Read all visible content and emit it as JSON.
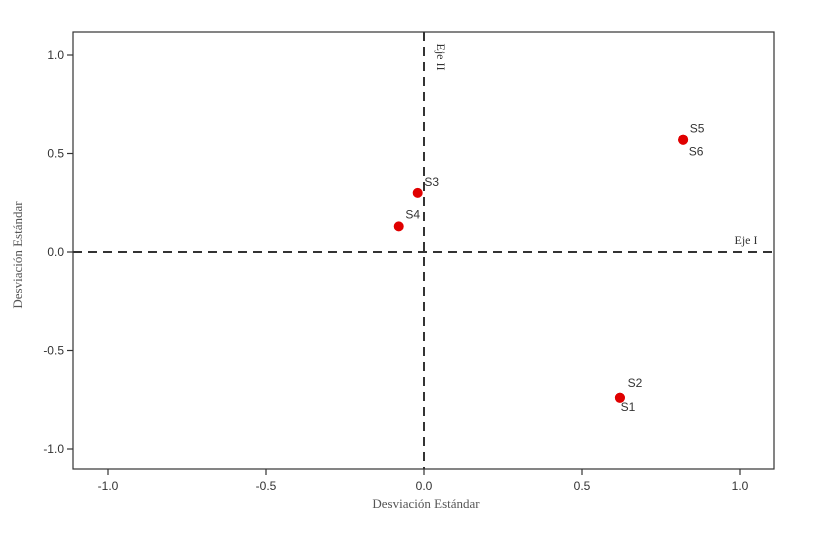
{
  "chart_data": {
    "type": "scatter",
    "title": "",
    "xlabel": "Desviación Estándar",
    "ylabel": "Desviación Estándar",
    "xlim": [
      -1.1,
      1.1
    ],
    "ylim": [
      -1.1,
      1.1
    ],
    "x_ticks": [
      -1.0,
      -0.5,
      0.0,
      0.5,
      1.0
    ],
    "x_tick_labels": [
      "-1.0",
      "-0.5",
      "0.0",
      "0.5",
      "1.0"
    ],
    "y_ticks": [
      1.0,
      0.5,
      0.0,
      -0.5,
      -1.0
    ],
    "y_tick_labels": [
      "1.0",
      "0.5",
      "0.0",
      "-0.5",
      "-1.0"
    ],
    "grid": false,
    "reference_lines": [
      {
        "orientation": "horizontal",
        "value": 0.0,
        "label": "Eje I",
        "style": "dashed"
      },
      {
        "orientation": "vertical",
        "value": 0.0,
        "label": "Eje II",
        "style": "dashed"
      }
    ],
    "marker_color": "#e00000",
    "points": [
      {
        "label": "S1",
        "x": 0.62,
        "y": -0.74
      },
      {
        "label": "S2",
        "x": 0.62,
        "y": -0.74
      },
      {
        "label": "S3",
        "x": -0.02,
        "y": 0.3
      },
      {
        "label": "S4",
        "x": -0.08,
        "y": 0.13
      },
      {
        "label": "S5",
        "x": 0.82,
        "y": 0.57
      },
      {
        "label": "S6",
        "x": 0.82,
        "y": 0.57
      }
    ]
  }
}
